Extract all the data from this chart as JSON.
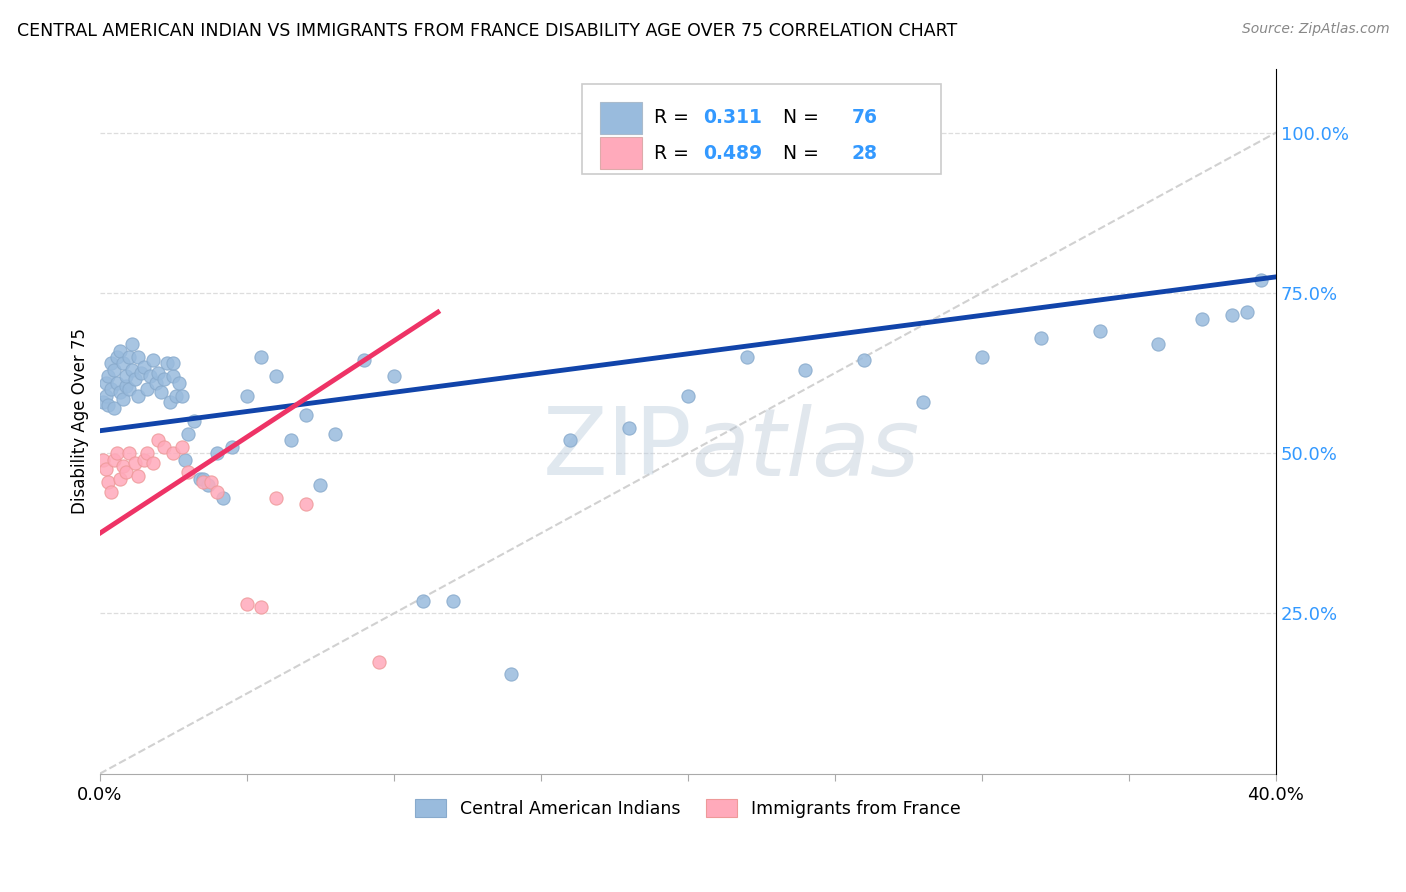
{
  "title": "CENTRAL AMERICAN INDIAN VS IMMIGRANTS FROM FRANCE DISABILITY AGE OVER 75 CORRELATION CHART",
  "source": "Source: ZipAtlas.com",
  "ylabel": "Disability Age Over 75",
  "xlim": [
    0.0,
    0.4
  ],
  "ylim": [
    0.0,
    1.1
  ],
  "ytick_values": [
    0.0,
    0.25,
    0.5,
    0.75,
    1.0
  ],
  "ytick_labels": [
    "",
    "25.0%",
    "50.0%",
    "75.0%",
    "100.0%"
  ],
  "xtick_values": [
    0.0,
    0.05,
    0.1,
    0.15,
    0.2,
    0.25,
    0.3,
    0.35,
    0.4
  ],
  "xtick_labels": [
    "0.0%",
    "",
    "",
    "",
    "",
    "",
    "",
    "",
    "40.0%"
  ],
  "legend1_label": "Central American Indians",
  "legend2_label": "Immigrants from France",
  "R1": 0.311,
  "N1": 76,
  "R2": 0.489,
  "N2": 28,
  "color_blue": "#99BBDD",
  "color_blue_edge": "#88AACC",
  "color_pink": "#FFAABB",
  "color_pink_edge": "#EE9999",
  "color_trendline_blue": "#1144AA",
  "color_trendline_pink": "#EE3366",
  "color_diagonal": "#CCCCCC",
  "watermark_zip": "ZIP",
  "watermark_atlas": "atlas",
  "trendline_blue_x0": 0.0,
  "trendline_blue_y0": 0.535,
  "trendline_blue_x1": 0.4,
  "trendline_blue_y1": 0.775,
  "trendline_pink_x0": 0.0,
  "trendline_pink_y0": 0.375,
  "trendline_pink_x1": 0.115,
  "trendline_pink_y1": 0.72,
  "blue_x": [
    0.001,
    0.002,
    0.002,
    0.003,
    0.003,
    0.004,
    0.004,
    0.005,
    0.005,
    0.006,
    0.006,
    0.007,
    0.007,
    0.008,
    0.008,
    0.009,
    0.009,
    0.01,
    0.01,
    0.011,
    0.011,
    0.012,
    0.013,
    0.013,
    0.014,
    0.015,
    0.016,
    0.017,
    0.018,
    0.019,
    0.02,
    0.021,
    0.022,
    0.023,
    0.024,
    0.025,
    0.025,
    0.026,
    0.027,
    0.028,
    0.029,
    0.03,
    0.032,
    0.034,
    0.035,
    0.037,
    0.04,
    0.042,
    0.045,
    0.05,
    0.055,
    0.06,
    0.065,
    0.07,
    0.075,
    0.08,
    0.09,
    0.1,
    0.11,
    0.12,
    0.14,
    0.16,
    0.18,
    0.2,
    0.22,
    0.24,
    0.26,
    0.28,
    0.3,
    0.32,
    0.34,
    0.36,
    0.375,
    0.385,
    0.39,
    0.395
  ],
  "blue_y": [
    0.58,
    0.59,
    0.61,
    0.62,
    0.575,
    0.64,
    0.6,
    0.63,
    0.57,
    0.65,
    0.61,
    0.595,
    0.66,
    0.585,
    0.64,
    0.605,
    0.62,
    0.65,
    0.6,
    0.67,
    0.63,
    0.615,
    0.59,
    0.65,
    0.625,
    0.635,
    0.6,
    0.62,
    0.645,
    0.61,
    0.625,
    0.595,
    0.615,
    0.64,
    0.58,
    0.62,
    0.64,
    0.59,
    0.61,
    0.59,
    0.49,
    0.53,
    0.55,
    0.46,
    0.46,
    0.45,
    0.5,
    0.43,
    0.51,
    0.59,
    0.65,
    0.62,
    0.52,
    0.56,
    0.45,
    0.53,
    0.645,
    0.62,
    0.27,
    0.27,
    0.155,
    0.52,
    0.54,
    0.59,
    0.65,
    0.63,
    0.645,
    0.58,
    0.65,
    0.68,
    0.69,
    0.67,
    0.71,
    0.715,
    0.72,
    0.77
  ],
  "pink_x": [
    0.001,
    0.002,
    0.003,
    0.004,
    0.005,
    0.006,
    0.007,
    0.008,
    0.009,
    0.01,
    0.012,
    0.013,
    0.015,
    0.016,
    0.018,
    0.02,
    0.022,
    0.025,
    0.028,
    0.03,
    0.035,
    0.038,
    0.04,
    0.05,
    0.055,
    0.06,
    0.07,
    0.095
  ],
  "pink_y": [
    0.49,
    0.475,
    0.455,
    0.44,
    0.49,
    0.5,
    0.46,
    0.48,
    0.47,
    0.5,
    0.485,
    0.465,
    0.49,
    0.5,
    0.485,
    0.52,
    0.51,
    0.5,
    0.51,
    0.47,
    0.455,
    0.455,
    0.44,
    0.265,
    0.26,
    0.43,
    0.42,
    0.175
  ]
}
